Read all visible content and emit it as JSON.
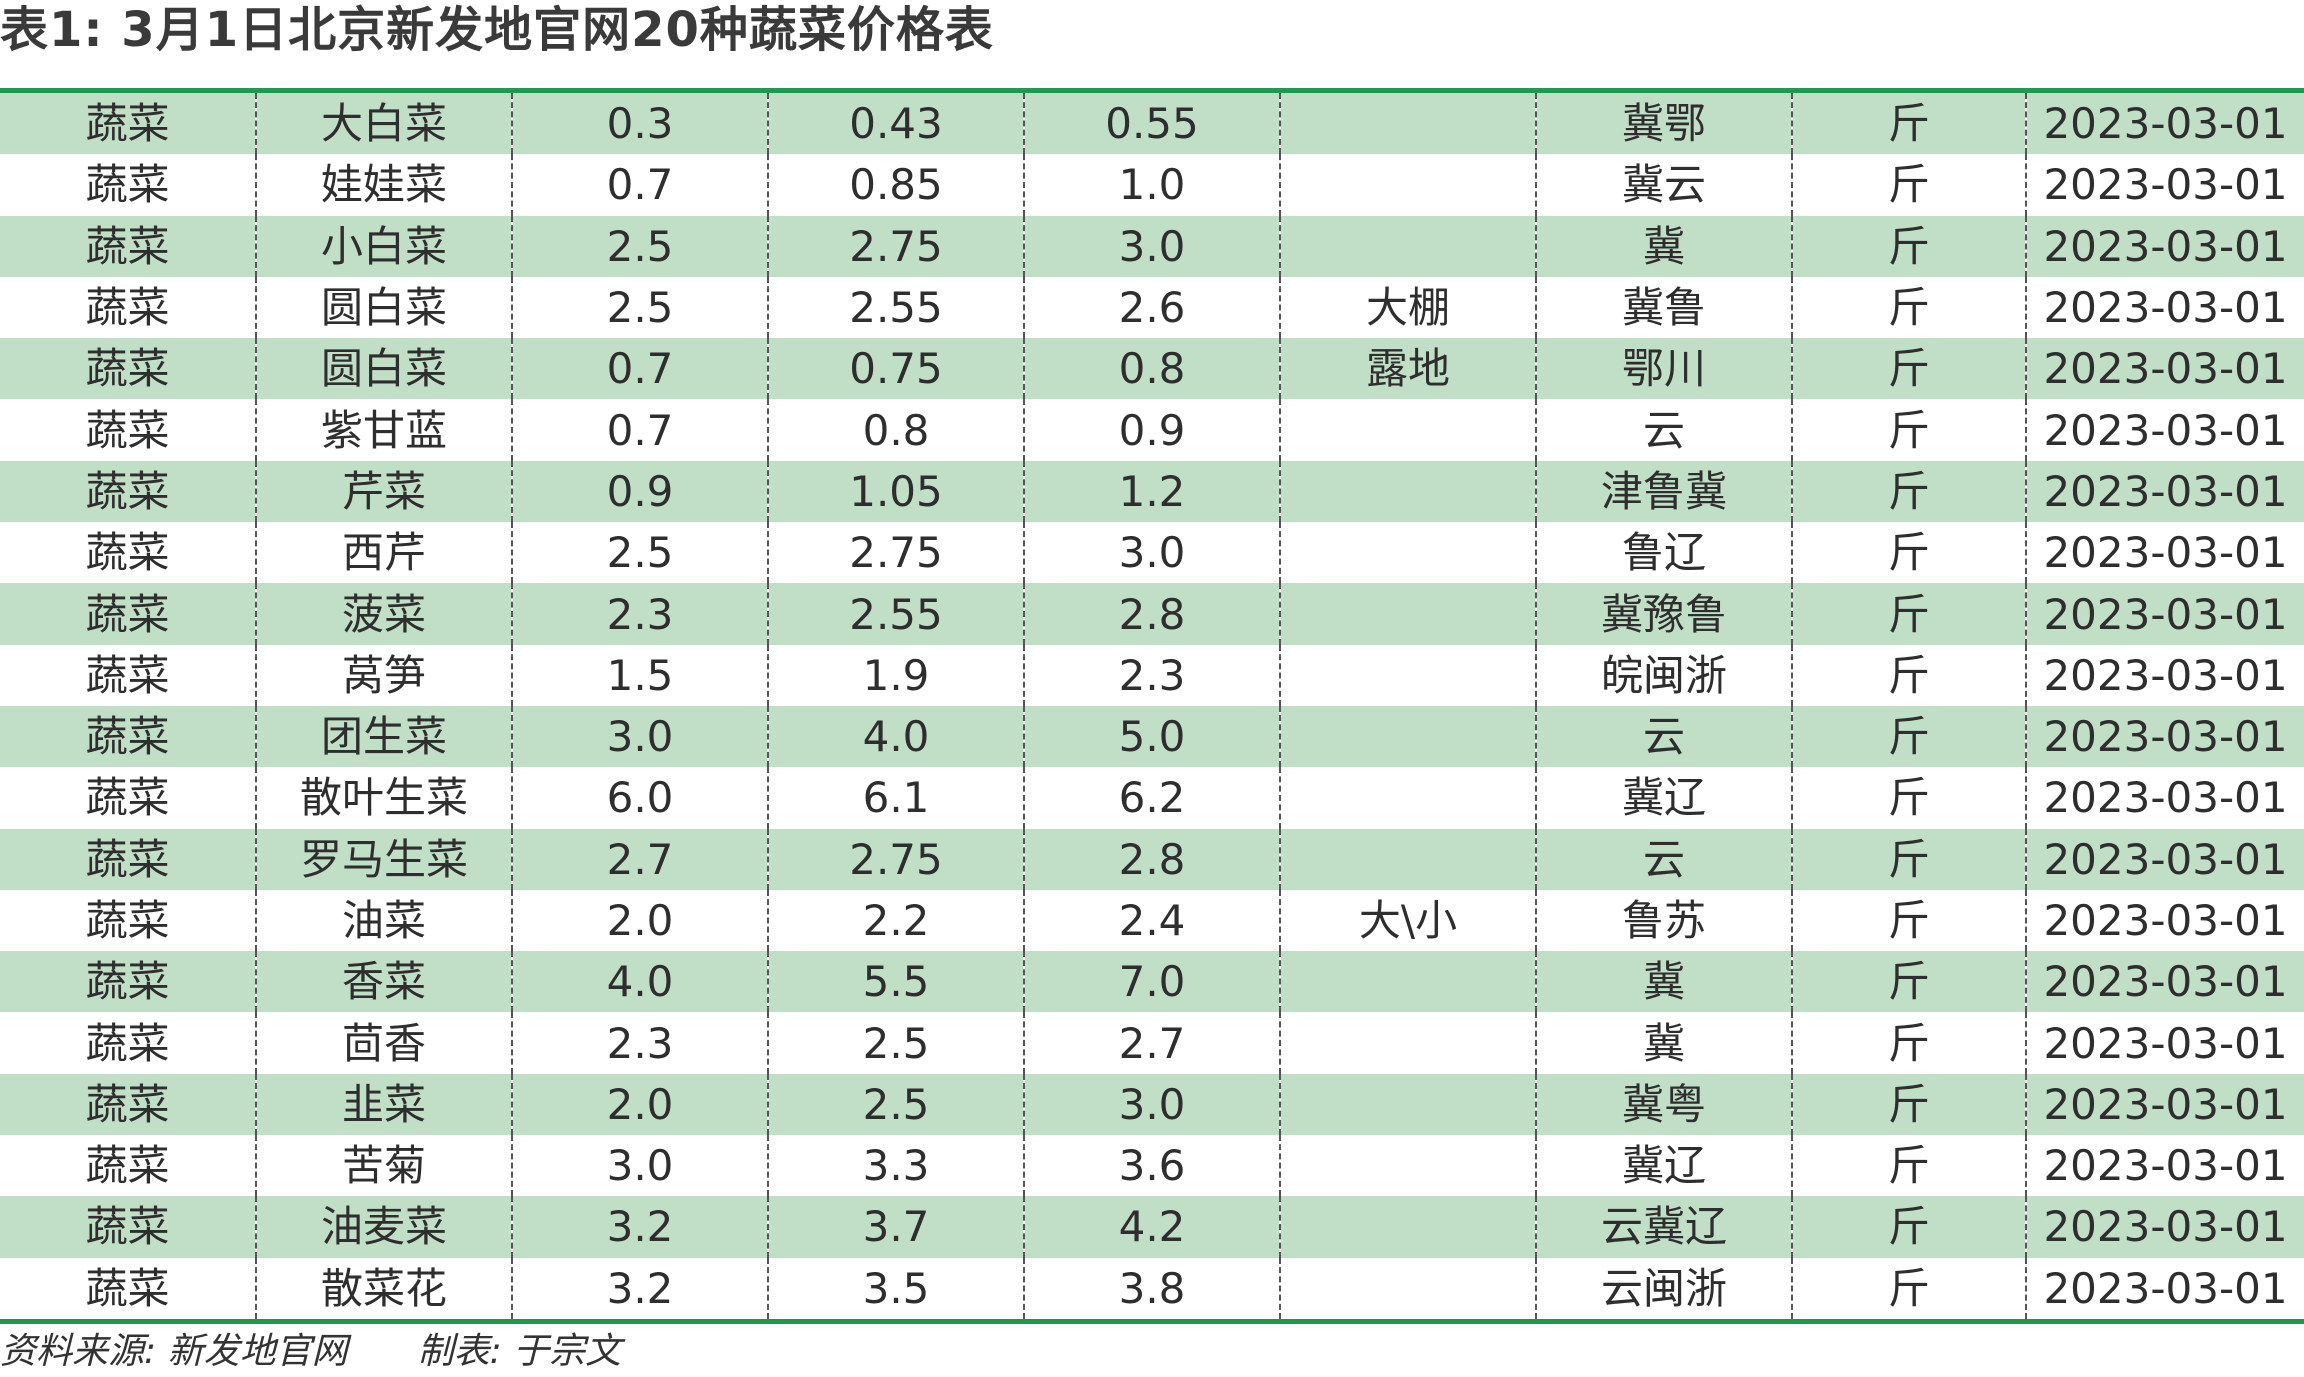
{
  "title": "表1: 3月1日北京新发地官网20种蔬菜价格表",
  "rows": [
    [
      "蔬菜",
      "大白菜",
      "0.3",
      "0.43",
      "0.55",
      "",
      "冀鄂",
      "斤",
      "2023-03-01"
    ],
    [
      "蔬菜",
      "娃娃菜",
      "0.7",
      "0.85",
      "1.0",
      "",
      "冀云",
      "斤",
      "2023-03-01"
    ],
    [
      "蔬菜",
      "小白菜",
      "2.5",
      "2.75",
      "3.0",
      "",
      "冀",
      "斤",
      "2023-03-01"
    ],
    [
      "蔬菜",
      "圆白菜",
      "2.5",
      "2.55",
      "2.6",
      "大棚",
      "冀鲁",
      "斤",
      "2023-03-01"
    ],
    [
      "蔬菜",
      "圆白菜",
      "0.7",
      "0.75",
      "0.8",
      "露地",
      "鄂川",
      "斤",
      "2023-03-01"
    ],
    [
      "蔬菜",
      "紫甘蓝",
      "0.7",
      "0.8",
      "0.9",
      "",
      "云",
      "斤",
      "2023-03-01"
    ],
    [
      "蔬菜",
      "芹菜",
      "0.9",
      "1.05",
      "1.2",
      "",
      "津鲁冀",
      "斤",
      "2023-03-01"
    ],
    [
      "蔬菜",
      "西芹",
      "2.5",
      "2.75",
      "3.0",
      "",
      "鲁辽",
      "斤",
      "2023-03-01"
    ],
    [
      "蔬菜",
      "菠菜",
      "2.3",
      "2.55",
      "2.8",
      "",
      "冀豫鲁",
      "斤",
      "2023-03-01"
    ],
    [
      "蔬菜",
      "莴笋",
      "1.5",
      "1.9",
      "2.3",
      "",
      "皖闽浙",
      "斤",
      "2023-03-01"
    ],
    [
      "蔬菜",
      "团生菜",
      "3.0",
      "4.0",
      "5.0",
      "",
      "云",
      "斤",
      "2023-03-01"
    ],
    [
      "蔬菜",
      "散叶生菜",
      "6.0",
      "6.1",
      "6.2",
      "",
      "冀辽",
      "斤",
      "2023-03-01"
    ],
    [
      "蔬菜",
      "罗马生菜",
      "2.7",
      "2.75",
      "2.8",
      "",
      "云",
      "斤",
      "2023-03-01"
    ],
    [
      "蔬菜",
      "油菜",
      "2.0",
      "2.2",
      "2.4",
      "大\\小",
      "鲁苏",
      "斤",
      "2023-03-01"
    ],
    [
      "蔬菜",
      "香菜",
      "4.0",
      "5.5",
      "7.0",
      "",
      "冀",
      "斤",
      "2023-03-01"
    ],
    [
      "蔬菜",
      "茴香",
      "2.3",
      "2.5",
      "2.7",
      "",
      "冀",
      "斤",
      "2023-03-01"
    ],
    [
      "蔬菜",
      "韭菜",
      "2.0",
      "2.5",
      "3.0",
      "",
      "冀粤",
      "斤",
      "2023-03-01"
    ],
    [
      "蔬菜",
      "苦菊",
      "3.0",
      "3.3",
      "3.6",
      "",
      "冀辽",
      "斤",
      "2023-03-01"
    ],
    [
      "蔬菜",
      "油麦菜",
      "3.2",
      "3.7",
      "4.2",
      "",
      "云冀辽",
      "斤",
      "2023-03-01"
    ],
    [
      "蔬菜",
      "散菜花",
      "3.2",
      "3.5",
      "3.8",
      "",
      "云闽浙",
      "斤",
      "2023-03-01"
    ]
  ],
  "footer": {
    "source": "资料来源: 新发地官网",
    "maker": "制表: 于宗文"
  },
  "colors": {
    "rule": "#1d9a4f",
    "stripe": "#c0dfc6"
  }
}
